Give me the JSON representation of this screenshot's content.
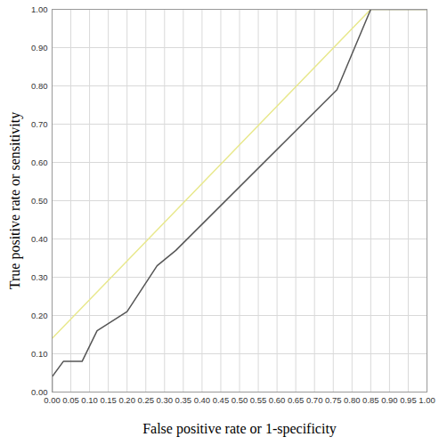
{
  "chart_data": {
    "type": "line",
    "xlabel": "False positive rate or 1-specificity",
    "ylabel": "True positive rate or sensitivity",
    "series": [
      {
        "color": "#e8e88c",
        "x": [
          0.0,
          0.85,
          1.0
        ],
        "values": [
          0.14,
          1.0,
          1.0
        ]
      },
      {
        "color": "#555555",
        "x": [
          0.0,
          0.0,
          0.03,
          0.08,
          0.12,
          0.2,
          0.28,
          0.33,
          0.76,
          0.85,
          1.0
        ],
        "values": [
          0.0,
          0.04,
          0.08,
          0.08,
          0.16,
          0.21,
          0.33,
          0.37,
          0.79,
          1.0,
          1.0
        ]
      }
    ],
    "xlim": [
      0,
      1
    ],
    "ylim": [
      0,
      1
    ],
    "xticks": [
      {
        "value": 0,
        "label": "0.00"
      },
      {
        "value": 0.05,
        "label": "0.05"
      },
      {
        "value": 0.1,
        "label": "0.10"
      },
      {
        "value": 0.15,
        "label": "0.15"
      },
      {
        "value": 0.2,
        "label": "0.20"
      },
      {
        "value": 0.25,
        "label": "0.25"
      },
      {
        "value": 0.3,
        "label": "0.30"
      },
      {
        "value": 0.35,
        "label": "0.35"
      },
      {
        "value": 0.4,
        "label": "0.40"
      },
      {
        "value": 0.45,
        "label": "0.45"
      },
      {
        "value": 0.5,
        "label": "0.50"
      },
      {
        "value": 0.55,
        "label": "0.55"
      },
      {
        "value": 0.6,
        "label": "0.60"
      },
      {
        "value": 0.65,
        "label": "0.65"
      },
      {
        "value": 0.7,
        "label": "0.70"
      },
      {
        "value": 0.75,
        "label": "0.75"
      },
      {
        "value": 0.8,
        "label": "0.80"
      },
      {
        "value": 0.85,
        "label": "0.85"
      },
      {
        "value": 0.9,
        "label": "0.90"
      },
      {
        "value": 0.95,
        "label": "0.95"
      },
      {
        "value": 1,
        "label": "1.00"
      }
    ],
    "yticks": [
      {
        "value": 0,
        "label": "0.00"
      },
      {
        "value": 0.1,
        "label": "0.10"
      },
      {
        "value": 0.2,
        "label": "0.20"
      },
      {
        "value": 0.3,
        "label": "0.30"
      },
      {
        "value": 0.4,
        "label": "0.40"
      },
      {
        "value": 0.5,
        "label": "0.50"
      },
      {
        "value": 0.6,
        "label": "0.60"
      },
      {
        "value": 0.7,
        "label": "0.70"
      },
      {
        "value": 0.8,
        "label": "0.80"
      },
      {
        "value": 0.9,
        "label": "0.90"
      },
      {
        "value": 1,
        "label": "1.00"
      }
    ],
    "grid": true
  }
}
